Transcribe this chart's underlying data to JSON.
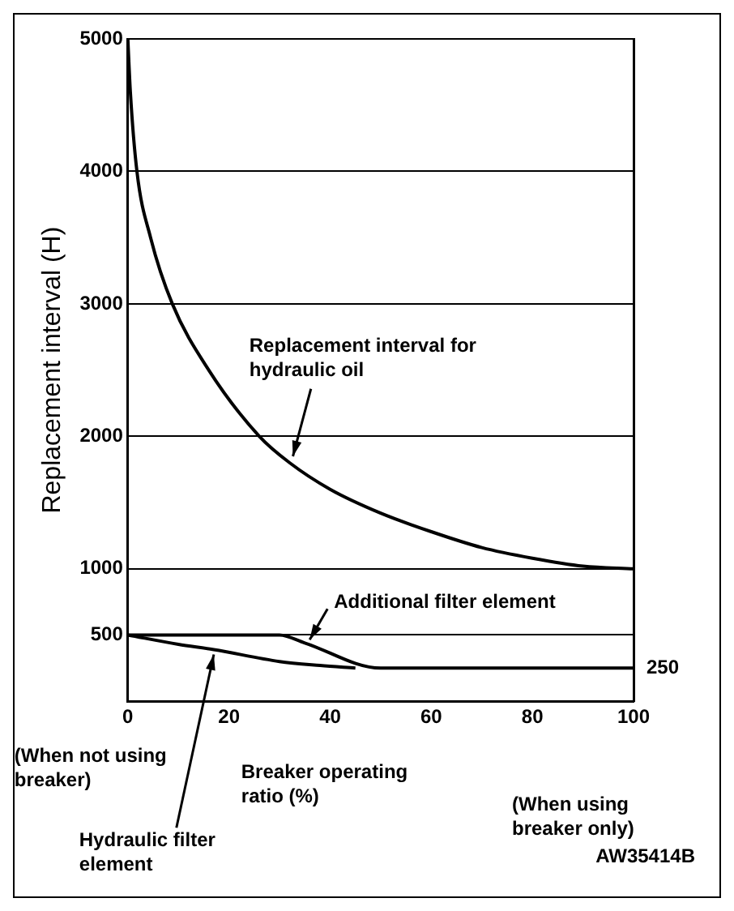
{
  "chart_data": {
    "type": "line",
    "xlabel": "Breaker operating ratio (%)",
    "ylabel": "Replacement interval (H)",
    "xlim": [
      0,
      100
    ],
    "xticks": [
      0,
      20,
      40,
      60,
      80,
      100
    ],
    "ylim": [
      0,
      5000
    ],
    "yticks": [
      500,
      1000,
      2000,
      3000,
      4000,
      5000
    ],
    "grid": "y",
    "legend": false,
    "marker": "none",
    "line_style": "solid",
    "series": [
      {
        "name": "Replacement interval for hydraulic oil",
        "color": "#000000",
        "x": [
          0,
          0.5,
          1.8,
          4.5,
          8.8,
          16,
          26,
          32,
          40,
          50,
          60,
          70,
          80,
          90,
          100
        ],
        "values": [
          5000,
          4600,
          4000,
          3500,
          3000,
          2500,
          2000,
          1800,
          1600,
          1420,
          1280,
          1160,
          1080,
          1020,
          1000
        ]
      },
      {
        "name": "Additional filter element",
        "color": "#000000",
        "x": [
          0,
          30,
          35,
          50,
          100
        ],
        "values": [
          500,
          500,
          440,
          250,
          250
        ]
      },
      {
        "name": "Hydraulic filter element",
        "color": "#000000",
        "x": [
          0,
          10,
          17,
          30,
          38,
          45
        ],
        "values": [
          500,
          430,
          390,
          300,
          270,
          250
        ]
      }
    ],
    "annotations": [
      "(When not using breaker)",
      "(When using breaker only)",
      "AW35414B",
      {
        "text": "250",
        "x": 100,
        "y": 250
      }
    ]
  }
}
